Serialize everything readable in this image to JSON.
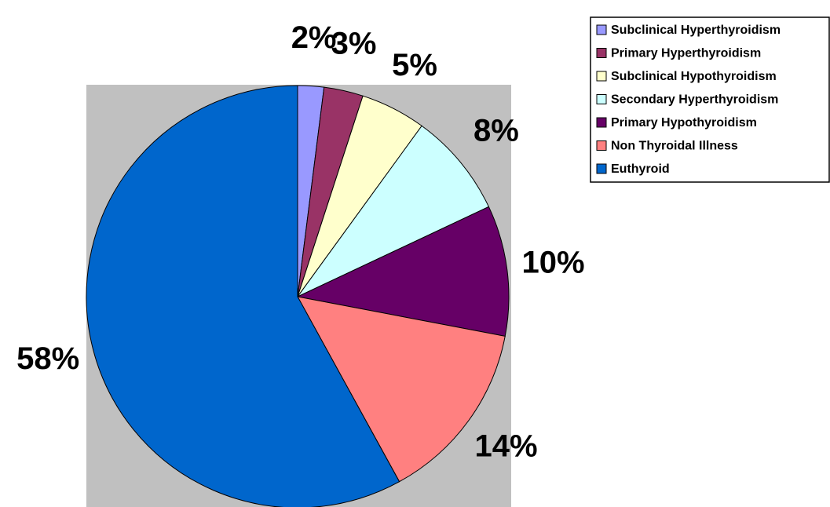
{
  "chart_data": {
    "type": "pie",
    "categories": [
      "Subclinical Hyperthyroidism",
      "Primary Hyperthyroidism",
      "Subclinical Hypothyroidism",
      "Secondary Hyperthyroidism",
      "Primary Hypothyroidism",
      "Non Thyroidal Illness",
      "Euthyroid"
    ],
    "values": [
      2,
      3,
      5,
      8,
      10,
      14,
      58
    ],
    "value_labels": [
      "2%",
      "3%",
      "5%",
      "8%",
      "10%",
      "14%",
      "58%"
    ],
    "colors": [
      "#9999ff",
      "#993366",
      "#ffffcc",
      "#ccffff",
      "#660066",
      "#ff8080",
      "#0066cc"
    ],
    "legend": "top-right"
  }
}
